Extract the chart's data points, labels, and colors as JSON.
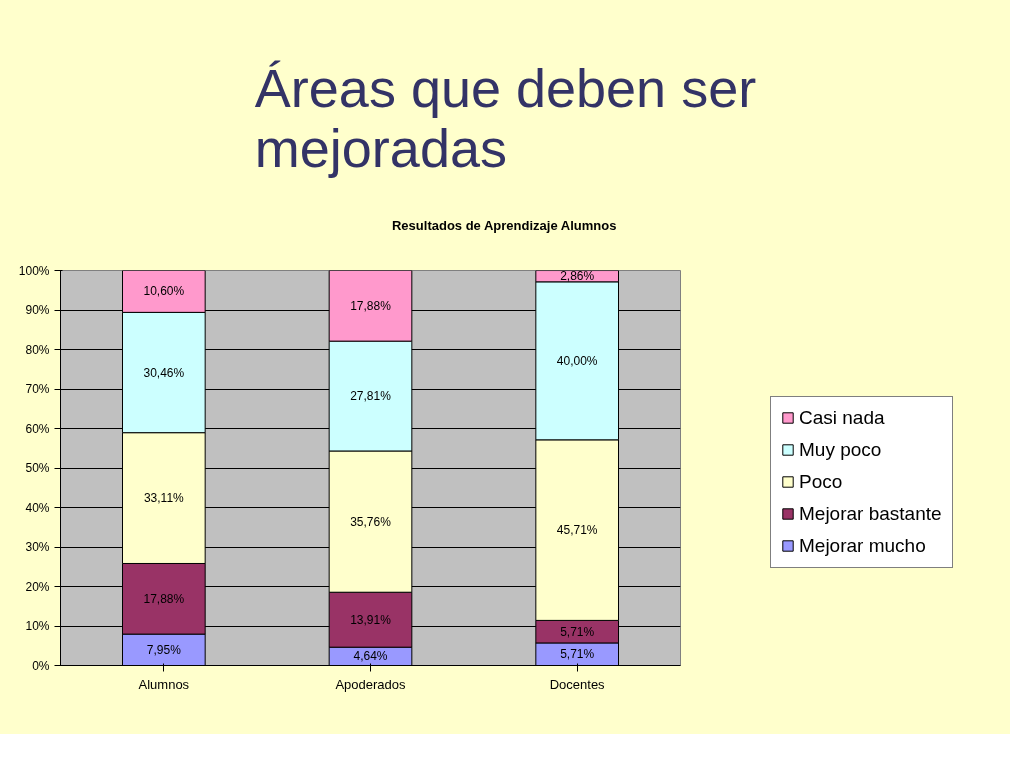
{
  "chart_data": {
    "type": "bar",
    "title": "Áreas que deben ser mejoradas",
    "subtitle": "Resultados de Aprendizaje Alumnos",
    "categories": [
      "Alumnos",
      "Apoderados",
      "Docentes"
    ],
    "stacked": true,
    "series": [
      {
        "name": "Mejorar mucho",
        "color": "#9999ff",
        "values": [
          7.95,
          4.64,
          5.71
        ],
        "value_labels": [
          "7,95%",
          "4,64%",
          "5,71%"
        ]
      },
      {
        "name": "Mejorar bastante",
        "color": "#993366",
        "values": [
          17.88,
          13.91,
          5.71
        ],
        "value_labels": [
          "17,88%",
          "13,91%",
          "5,71%"
        ]
      },
      {
        "name": "Poco",
        "color": "#ffffcc",
        "values": [
          33.11,
          35.76,
          45.71
        ],
        "value_labels": [
          "33,11%",
          "35,76%",
          "45,71%"
        ]
      },
      {
        "name": "Muy poco",
        "color": "#ccffff",
        "values": [
          30.46,
          27.81,
          40.0
        ],
        "value_labels": [
          "30,46%",
          "27,81%",
          "40,00%"
        ]
      },
      {
        "name": "Casi nada",
        "color": "#ff99cc",
        "values": [
          10.6,
          17.88,
          2.86
        ],
        "value_labels": [
          "10,60%",
          "17,88%",
          "2,86%"
        ]
      }
    ],
    "ylim": [
      0,
      100
    ],
    "yticks": [
      {
        "value": 0,
        "label": "0%"
      },
      {
        "value": 10,
        "label": "10%"
      },
      {
        "value": 20,
        "label": "20%"
      },
      {
        "value": 30,
        "label": "30%"
      },
      {
        "value": 40,
        "label": "40%"
      },
      {
        "value": 50,
        "label": "50%"
      },
      {
        "value": 60,
        "label": "60%"
      },
      {
        "value": 70,
        "label": "70%"
      },
      {
        "value": 80,
        "label": "80%"
      },
      {
        "value": 90,
        "label": "90%"
      },
      {
        "value": 100,
        "label": "100%"
      }
    ],
    "grid": "y",
    "legend": "right"
  }
}
